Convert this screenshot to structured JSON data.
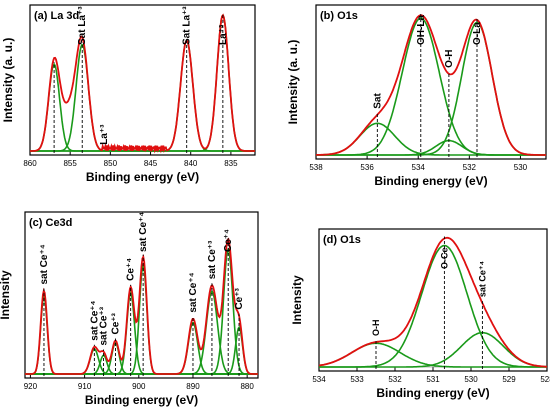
{
  "chart_data": [
    {
      "id": "a",
      "type": "line",
      "panel_label": "(a)",
      "title": "La 3d",
      "xlabel": "Binding energy  (eV)",
      "ylabel": "Intensity  (a. u.)",
      "xlim": [
        860,
        832
      ],
      "ylim": [
        0,
        1
      ],
      "xticks": [
        860,
        855,
        850,
        845,
        840,
        835
      ],
      "grid": false,
      "legend": "none",
      "peaks": [
        {
          "center": 857.0,
          "height": 0.62,
          "fwhm": 1.6
        },
        {
          "center": 853.5,
          "height": 0.76,
          "fwhm": 1.8
        },
        {
          "center": 840.5,
          "height": 0.79,
          "fwhm": 1.8
        },
        {
          "center": 836.0,
          "height": 0.97,
          "fwhm": 1.7
        }
      ],
      "envelope_extra": {
        "center": 855.2,
        "height": 0.28,
        "fwhm": 2.2
      },
      "noise_band": [
        851,
        843,
        0.02
      ],
      "markers": [
        {
          "x": 857.0,
          "label": ""
        },
        {
          "x": 853.5,
          "label": "Sat La⁺³"
        },
        {
          "x": 850.8,
          "label": "La⁺³",
          "label_only": true
        },
        {
          "x": 840.5,
          "label": "Sat La⁺³"
        },
        {
          "x": 836.0,
          "label": "La⁺³"
        }
      ]
    },
    {
      "id": "b",
      "type": "line",
      "panel_label": "(b)",
      "title": "O1s",
      "xlabel": "Binding energy  (eV)",
      "ylabel": "Intensity  (a. u.)",
      "xlim": [
        538,
        529
      ],
      "ylim": [
        0,
        1
      ],
      "xticks": [
        538,
        536,
        534,
        532,
        530
      ],
      "grid": false,
      "legend": "none",
      "peaks": [
        {
          "center": 535.6,
          "height": 0.22,
          "fwhm": 1.6
        },
        {
          "center": 533.9,
          "height": 0.95,
          "fwhm": 1.7
        },
        {
          "center": 532.8,
          "height": 0.1,
          "fwhm": 1.2
        },
        {
          "center": 531.7,
          "height": 0.92,
          "fwhm": 1.4
        }
      ],
      "markers": [
        {
          "x": 535.6,
          "label": "Sat"
        },
        {
          "x": 533.9,
          "label": "OH-La"
        },
        {
          "x": 532.8,
          "label": "O-H"
        },
        {
          "x": 531.7,
          "label": "O-La"
        }
      ]
    },
    {
      "id": "c",
      "type": "line",
      "panel_label": "(c)",
      "title": "Ce3d",
      "xlabel": "Binding energy  (eV)",
      "ylabel": "Intensity",
      "xlim": [
        921,
        878
      ],
      "ylim": [
        0,
        1
      ],
      "xticks": [
        920,
        910,
        900,
        890,
        880
      ],
      "grid": false,
      "legend": "none",
      "peaks": [
        {
          "center": 917.5,
          "height": 0.5,
          "fwhm": 1.4
        },
        {
          "center": 908.2,
          "height": 0.16,
          "fwhm": 1.8
        },
        {
          "center": 906.5,
          "height": 0.12,
          "fwhm": 1.5
        },
        {
          "center": 904.3,
          "height": 0.2,
          "fwhm": 1.6
        },
        {
          "center": 901.5,
          "height": 0.52,
          "fwhm": 1.7
        },
        {
          "center": 899.2,
          "height": 0.7,
          "fwhm": 1.6
        },
        {
          "center": 890.0,
          "height": 0.33,
          "fwhm": 2.0
        },
        {
          "center": 886.5,
          "height": 0.53,
          "fwhm": 2.4
        },
        {
          "center": 883.5,
          "height": 0.8,
          "fwhm": 2.0
        },
        {
          "center": 881.5,
          "height": 0.3,
          "fwhm": 1.5
        }
      ],
      "envelope_scale": 1.07,
      "markers": [
        {
          "x": 917.5,
          "label": "sat Ce⁺⁴"
        },
        {
          "x": 908.2,
          "label": "sat Ce⁺⁴"
        },
        {
          "x": 906.5,
          "label": "sat Ce⁺³"
        },
        {
          "x": 904.3,
          "label": "Ce⁺³"
        },
        {
          "x": 901.5,
          "label": "Ce⁺⁴"
        },
        {
          "x": 899.2,
          "label": "sat Ce⁺⁴"
        },
        {
          "x": 890.0,
          "label": "sat Ce⁺⁴"
        },
        {
          "x": 886.5,
          "label": "sat Ce⁺³"
        },
        {
          "x": 883.5,
          "label": "Ce⁺⁴"
        },
        {
          "x": 881.5,
          "label": "Ce⁺³"
        }
      ]
    },
    {
      "id": "d",
      "type": "line",
      "panel_label": "(d)",
      "title": "O1s",
      "xlabel": "Binding energy  (eV)",
      "ylabel": "Intensity",
      "xlim": [
        534,
        528
      ],
      "ylim": [
        0,
        1
      ],
      "xticks": [
        534,
        533,
        532,
        531,
        530,
        529,
        528
      ],
      "grid": false,
      "legend": "none",
      "peaks": [
        {
          "center": 532.5,
          "height": 0.18,
          "fwhm": 1.5
        },
        {
          "center": 530.7,
          "height": 0.92,
          "fwhm": 1.4
        },
        {
          "center": 529.7,
          "height": 0.26,
          "fwhm": 1.3
        }
      ],
      "markers": [
        {
          "x": 532.5,
          "label": "O-H"
        },
        {
          "x": 530.7,
          "label": "O-Ce"
        },
        {
          "x": 529.7,
          "label": "sat Ce⁺⁴"
        }
      ]
    }
  ]
}
